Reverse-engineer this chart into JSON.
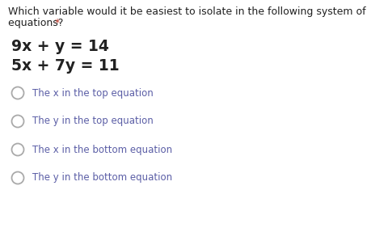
{
  "background_color": "#ffffff",
  "question_line1": "Which variable would it be easiest to isolate in the following system of",
  "question_line2": "equations? ",
  "asterisk": "*",
  "question_color": "#212121",
  "asterisk_color": "#c0392b",
  "eq1": "9x + y = 14",
  "eq2": "5x + 7y = 11",
  "eq_color": "#212121",
  "options": [
    "The x in the top equation",
    "The y in the top equation",
    "The x in the bottom equation",
    "The y in the bottom equation"
  ],
  "option_color": "#5b5ea6",
  "circle_edgecolor": "#aaaaaa",
  "question_fontsize": 9.0,
  "eq_fontsize": 13.5,
  "option_fontsize": 8.5
}
